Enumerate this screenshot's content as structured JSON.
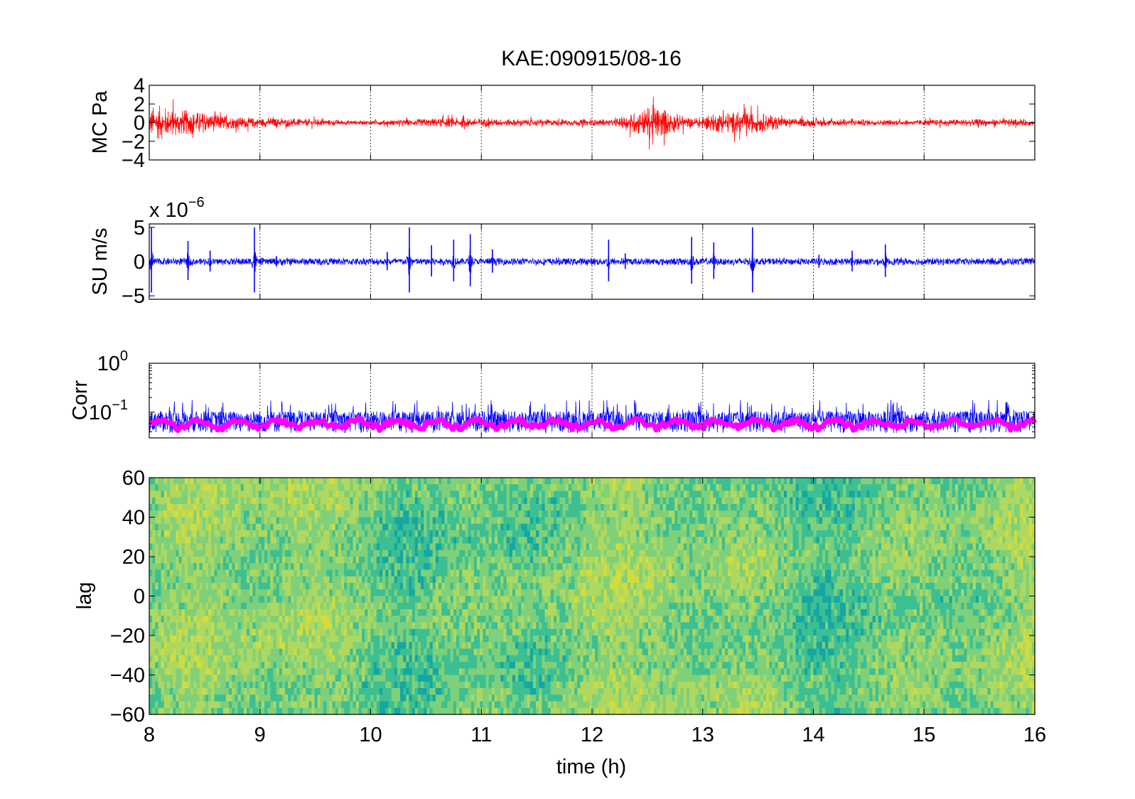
{
  "chart_data": [
    {
      "type": "line",
      "title": "KAE:090915/08-16",
      "ylabel": "MC Pa",
      "xlim": [
        8,
        16
      ],
      "ylim": [
        -4,
        4
      ],
      "yticks": [
        "4",
        "2",
        "0",
        "−2",
        "−4"
      ],
      "ytick_values": [
        4,
        2,
        0,
        -2,
        -4
      ],
      "xgrid": true,
      "series": [
        {
          "color": "#ff0000",
          "x": [
            8.0,
            8.1,
            8.2,
            8.3,
            8.5,
            8.75,
            9.0,
            9.5,
            9.9,
            10.3,
            10.8,
            11.2,
            11.8,
            12.2,
            12.55,
            12.9,
            13.2,
            13.5,
            13.8,
            14.3,
            14.8,
            15.3,
            15.7,
            16.0
          ],
          "envelope": [
            3.2,
            3.4,
            2.8,
            2.6,
            2.0,
            1.2,
            0.9,
            0.7,
            0.4,
            0.6,
            1.0,
            0.7,
            0.6,
            0.6,
            3.5,
            0.8,
            2.2,
            2.0,
            0.8,
            0.7,
            0.5,
            0.7,
            0.7,
            0.6
          ]
        }
      ]
    },
    {
      "type": "line",
      "ylabel": "SU m/s",
      "multiplier": "x 10",
      "exponent": "−6",
      "xlim": [
        8,
        16
      ],
      "ylim": [
        -5.5,
        5.5
      ],
      "yticks": [
        "5",
        "0",
        "−5"
      ],
      "ytick_values": [
        5,
        0,
        -5
      ],
      "xgrid": true,
      "series": [
        {
          "color": "#0000ff",
          "spikes": [
            {
              "x": 8.02,
              "amp": 5.0
            },
            {
              "x": 8.35,
              "amp": 3.0
            },
            {
              "x": 8.55,
              "amp": 1.6
            },
            {
              "x": 8.95,
              "amp": 5.0
            },
            {
              "x": 9.15,
              "amp": 0.8
            },
            {
              "x": 10.15,
              "amp": 1.4
            },
            {
              "x": 10.35,
              "amp": 5.0
            },
            {
              "x": 10.55,
              "amp": 2.4
            },
            {
              "x": 10.75,
              "amp": 3.2
            },
            {
              "x": 10.9,
              "amp": 4.0
            },
            {
              "x": 11.1,
              "amp": 1.8
            },
            {
              "x": 12.15,
              "amp": 3.2
            },
            {
              "x": 12.3,
              "amp": 1.2
            },
            {
              "x": 12.9,
              "amp": 3.6
            },
            {
              "x": 13.1,
              "amp": 2.8
            },
            {
              "x": 13.45,
              "amp": 5.0
            },
            {
              "x": 14.05,
              "amp": 1.0
            },
            {
              "x": 14.35,
              "amp": 1.6
            },
            {
              "x": 14.65,
              "amp": 2.5
            }
          ]
        }
      ]
    },
    {
      "type": "line",
      "ylabel": "Corr",
      "xlim": [
        8,
        16
      ],
      "yscale": "log",
      "ylim": [
        0.03,
        1
      ],
      "yticks": [
        {
          "base": "10",
          "exp": "0",
          "value": 1
        },
        {
          "base": "10",
          "exp": "−1",
          "value": 0.1
        }
      ],
      "xgrid": true,
      "series": [
        {
          "color": "#0000ff",
          "typical": 0.075,
          "peak": 0.2
        },
        {
          "color": "#ff00ff",
          "typical": 0.06,
          "peak": 0.08
        }
      ]
    },
    {
      "type": "heatmap",
      "ylabel": "lag",
      "xlabel": "time (h)",
      "xlim": [
        8,
        16
      ],
      "ylim": [
        -60,
        60
      ],
      "yticks": [
        "60",
        "40",
        "20",
        "0",
        "−20",
        "−40",
        "−60"
      ],
      "ytick_values": [
        60,
        40,
        20,
        0,
        -20,
        -40,
        -60
      ],
      "xticks": [
        "8",
        "9",
        "10",
        "11",
        "12",
        "13",
        "14",
        "15",
        "16"
      ],
      "xtick_values": [
        8,
        9,
        10,
        11,
        12,
        13,
        14,
        15,
        16
      ],
      "colors": [
        "#14a7a3",
        "#3cbf92",
        "#7fd07a",
        "#aed860",
        "#d2dc3e"
      ]
    }
  ]
}
